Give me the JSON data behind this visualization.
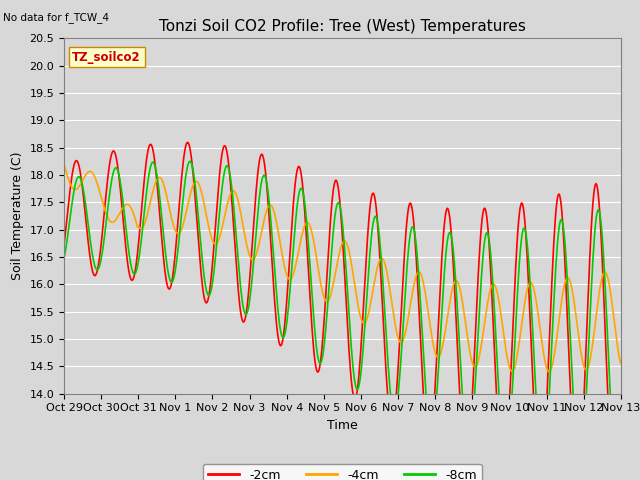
{
  "title": "Tonzi Soil CO2 Profile: Tree (West) Temperatures",
  "no_data_label": "No data for f_TCW_4",
  "site_label": "TZ_soilco2",
  "xlabel": "Time",
  "ylabel": "Soil Temperature (C)",
  "ylim": [
    14.0,
    20.5
  ],
  "yticks": [
    14.0,
    14.5,
    15.0,
    15.5,
    16.0,
    16.5,
    17.0,
    17.5,
    18.0,
    18.5,
    19.0,
    19.5,
    20.0,
    20.5
  ],
  "xtick_labels": [
    "Oct 29",
    "Oct 30",
    "Oct 31",
    "Nov 1",
    "Nov 2",
    "Nov 3",
    "Nov 4",
    "Nov 5",
    "Nov 6",
    "Nov 7",
    "Nov 8",
    "Nov 9",
    "Nov 10",
    "Nov 11",
    "Nov 12",
    "Nov 13"
  ],
  "line_colors": [
    "#ff0000",
    "#ffa500",
    "#00cc00"
  ],
  "line_labels": [
    "-2cm",
    "-4cm",
    "-8cm"
  ],
  "line_width": 1.2,
  "fig_bg": "#d8d8d8",
  "plot_bg": "#d8d8d8",
  "grid_color": "#ffffff"
}
